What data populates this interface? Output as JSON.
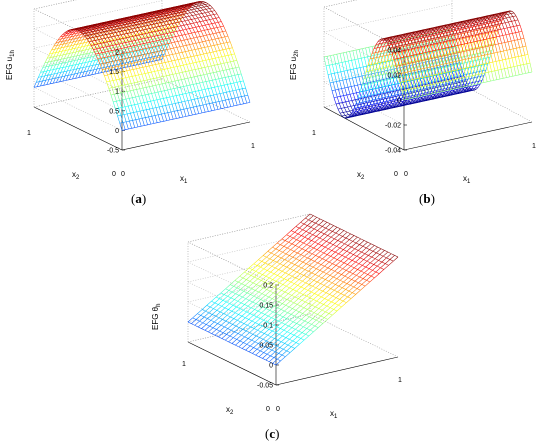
{
  "chart_data": [
    {
      "type": "surface",
      "caption_open": "(",
      "caption_letter": "a",
      "caption_close": ")",
      "zlabel_base": "EFG u",
      "zlabel_sub": "1h",
      "xlabel_base": "x",
      "xlabel_sub": "1",
      "ylabel_base": "x",
      "ylabel_sub": "2",
      "function": "sin_x2",
      "amplitude": 2,
      "zlim": [
        -0.5,
        2
      ],
      "zticks": [
        "-0.5",
        "0",
        "0.5",
        "1",
        "1.5",
        "2"
      ],
      "x1ticks": [
        "0",
        "1"
      ],
      "x2ticks": [
        "0",
        "1"
      ],
      "grid": true
    },
    {
      "type": "surface",
      "caption_open": "(",
      "caption_letter": "b",
      "caption_close": ")",
      "zlabel_base": "EFG u",
      "zlabel_sub": "2h",
      "xlabel_base": "x",
      "xlabel_sub": "1",
      "ylabel_base": "x",
      "ylabel_sub": "2",
      "function": "sin_2x2",
      "amplitude": 0.04,
      "zlim": [
        -0.04,
        0.04
      ],
      "zticks": [
        "-0.04",
        "-0.02",
        "0",
        "0.02",
        "0.04"
      ],
      "x1ticks": [
        "0",
        "1"
      ],
      "x2ticks": [
        "0",
        "1"
      ],
      "grid": true
    },
    {
      "type": "surface",
      "caption_open": "(",
      "caption_letter": "c",
      "caption_close": ")",
      "zlabel_base": "EFG θ",
      "zlabel_sub": "h",
      "xlabel_base": "x",
      "xlabel_sub": "1",
      "ylabel_base": "x",
      "ylabel_sub": "2",
      "function": "linear_x1",
      "amplitude": 0.2,
      "zlim": [
        -0.05,
        0.2
      ],
      "zticks": [
        "-0.05",
        "0",
        "0.05",
        "0.1",
        "0.15",
        "0.2"
      ],
      "x1ticks": [
        "0",
        "1"
      ],
      "x2ticks": [
        "0",
        "1"
      ],
      "grid": true
    }
  ]
}
